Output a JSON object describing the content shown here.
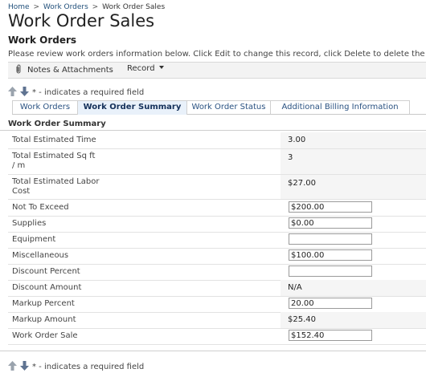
{
  "breadcrumb": {
    "home": "Home",
    "sep1": ">",
    "work_orders": "Work Orders",
    "sep2": ">",
    "current": "Work Order Sales"
  },
  "page_title": "Work Order Sales",
  "section": {
    "title": "Work Orders",
    "instruction": "Please review work orders information below. Click Edit to change this record, click Delete to delete the re"
  },
  "toolbar": {
    "notes_label": "Notes & Attachments",
    "record_label": "Record"
  },
  "required_note": "* - indicates a required field",
  "tabs": [
    {
      "label": "Work Orders",
      "active": false
    },
    {
      "label": "Work Order Summary",
      "active": true
    },
    {
      "label": "Work Order Status",
      "active": false
    },
    {
      "label": "Additional Billing Information",
      "active": false
    }
  ],
  "panel_title": "Work Order Summary",
  "fields": {
    "total_time": {
      "label": "Total Estimated Time",
      "value": "3.00"
    },
    "total_sqft": {
      "label1": "Total Estimated Sq ft",
      "label2": "/ m",
      "value": "3"
    },
    "total_labor": {
      "label1": "Total Estimated Labor",
      "label2": "Cost",
      "value": "$27.00"
    },
    "not_to_exceed": {
      "label": "Not To Exceed",
      "value": "$200.00"
    },
    "supplies": {
      "label": "Supplies",
      "value": "$0.00"
    },
    "equipment": {
      "label": "Equipment",
      "value": ""
    },
    "miscellaneous": {
      "label": "Miscellaneous",
      "value": "$100.00"
    },
    "discount_percent": {
      "label": "Discount Percent",
      "value": ""
    },
    "discount_amount": {
      "label": "Discount Amount",
      "value": "N/A"
    },
    "markup_percent": {
      "label": "Markup Percent",
      "value": "20.00"
    },
    "markup_amount": {
      "label": "Markup Amount",
      "value": "$25.40"
    },
    "work_order_sale": {
      "label": "Work Order Sale",
      "value": "$152.40"
    }
  },
  "icons": {
    "notes": "paperclip-icon",
    "record_menu": "chevron-down-icon",
    "up": "arrow-up-icon",
    "down": "arrow-down-icon"
  },
  "colors": {
    "accent": "#2a5282",
    "active_tab_bg": "#e9f1fa",
    "arrow": "#6b7f99"
  }
}
